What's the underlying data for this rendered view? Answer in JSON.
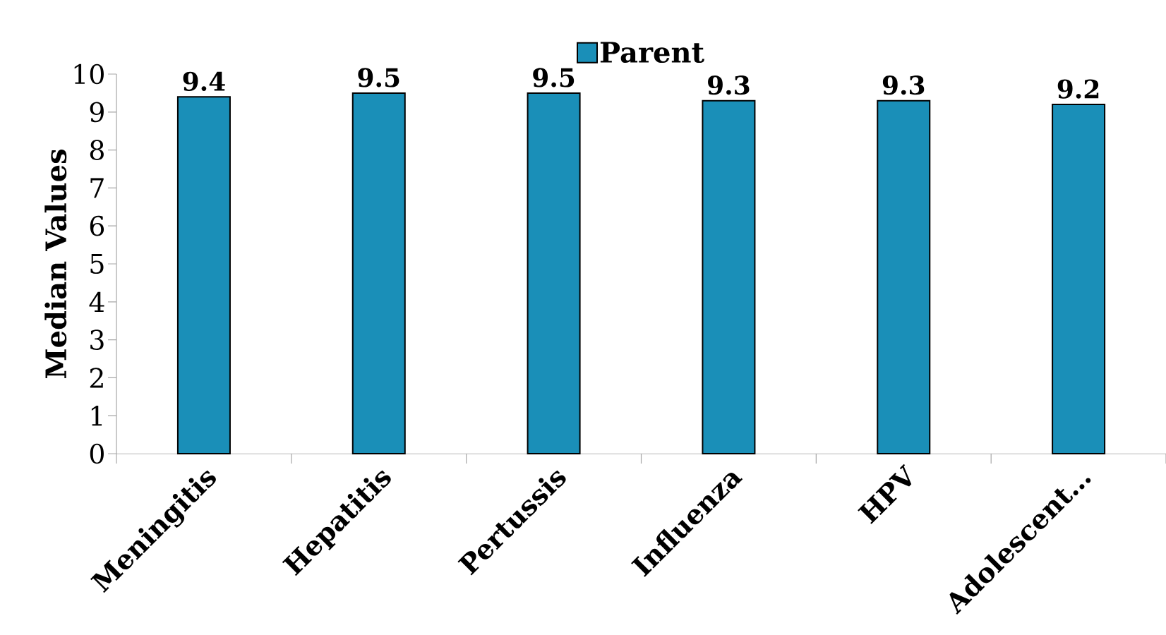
{
  "chart_data": {
    "type": "bar",
    "ylabel": "Median Values",
    "categories": [
      "Meningitis",
      "Hepatitis",
      "Pertussis",
      "Influenza",
      "HPV",
      "Adolescent…"
    ],
    "series": [
      {
        "name": "Parent",
        "color": "#1a8fb8",
        "values": [
          9.4,
          9.5,
          9.5,
          9.3,
          9.3,
          9.2
        ]
      }
    ],
    "ylim": [
      0,
      10
    ],
    "yticks": [
      0,
      1,
      2,
      3,
      4,
      5,
      6,
      7,
      8,
      9,
      10
    ],
    "data_labels": true,
    "legend": "top"
  }
}
